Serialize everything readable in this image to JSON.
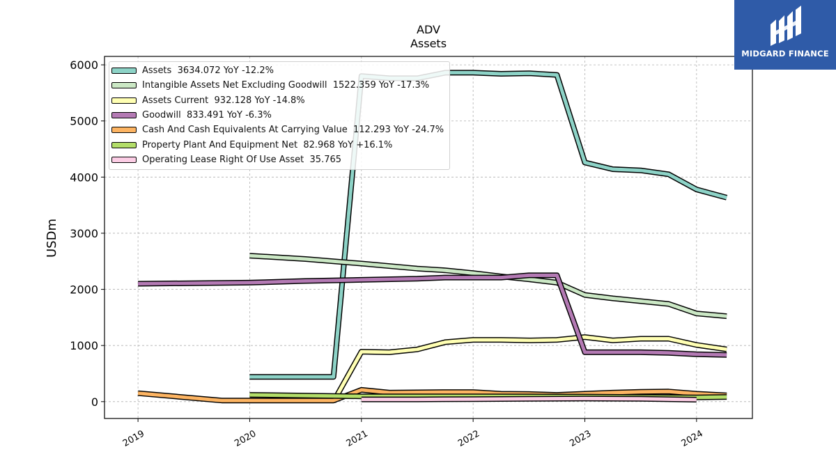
{
  "logo": {
    "name": "MIDGARD FINANCE",
    "bg": "#2f5ba8"
  },
  "chart_data": {
    "type": "line",
    "title": "ADV",
    "subtitle": "Assets",
    "ylabel": "USDm",
    "xlabel": "",
    "xlim": [
      2018.7,
      2024.5
    ],
    "ylim": [
      -300,
      6150
    ],
    "yticks": [
      0,
      1000,
      2000,
      3000,
      4000,
      5000,
      6000
    ],
    "xticks": [
      "2019",
      "2020",
      "2021",
      "2022",
      "2023",
      "2024"
    ],
    "grid": true,
    "legend_position": "top-left",
    "series": [
      {
        "name": "Assets",
        "legend": "Assets  3634.072 YoY -12.2%",
        "color": "#8dd3c7",
        "x": [
          2020.0,
          2020.75,
          2021.0,
          2021.25,
          2021.5,
          2021.75,
          2022.0,
          2022.25,
          2022.5,
          2022.75,
          2023.0,
          2023.25,
          2023.5,
          2023.75,
          2024.0,
          2024.27
        ],
        "y": [
          440,
          440,
          5800,
          5760,
          5760,
          5860,
          5860,
          5840,
          5850,
          5820,
          4260,
          4140,
          4120,
          4050,
          3780,
          3634
        ]
      },
      {
        "name": "Intangible Assets Net Excluding Goodwill",
        "legend": "Intangible Assets Net Excluding Goodwill  1522.359 YoY -17.3%",
        "color": "#cbe8c5",
        "x": [
          2020.0,
          2020.5,
          2021.0,
          2021.5,
          2021.75,
          2022.0,
          2022.25,
          2022.5,
          2022.75,
          2023.0,
          2023.25,
          2023.5,
          2023.75,
          2024.0,
          2024.27
        ],
        "y": [
          2600,
          2540,
          2460,
          2370,
          2340,
          2290,
          2230,
          2180,
          2120,
          1900,
          1840,
          1790,
          1740,
          1570,
          1522
        ]
      },
      {
        "name": "Assets Current",
        "legend": "Assets Current  932.128 YoY -14.8%",
        "color": "#ffffb3",
        "x": [
          2020.75,
          2021.0,
          2021.25,
          2021.5,
          2021.75,
          2022.0,
          2022.25,
          2022.5,
          2022.75,
          2023.0,
          2023.25,
          2023.5,
          2023.75,
          2024.0,
          2024.27
        ],
        "y": [
          0,
          890,
          880,
          930,
          1060,
          1100,
          1100,
          1090,
          1100,
          1150,
          1090,
          1120,
          1120,
          1010,
          932
        ]
      },
      {
        "name": "Goodwill",
        "legend": "Goodwill  833.491 YoY -6.3%",
        "color": "#b47ab4",
        "x": [
          2019.0,
          2020.0,
          2020.5,
          2021.0,
          2021.5,
          2021.75,
          2022.0,
          2022.25,
          2022.5,
          2022.75,
          2023.0,
          2023.25,
          2023.5,
          2023.75,
          2024.0,
          2024.27
        ],
        "y": [
          2100,
          2120,
          2150,
          2170,
          2190,
          2210,
          2210,
          2210,
          2250,
          2250,
          880,
          880,
          880,
          870,
          845,
          833
        ]
      },
      {
        "name": "Cash And Cash Equivalents At Carrying Value",
        "legend": "Cash And Cash Equivalents At Carrying Value  112.293 YoY -24.7%",
        "color": "#fdb462",
        "x": [
          2019.0,
          2019.75,
          2020.0,
          2020.75,
          2021.0,
          2021.25,
          2021.5,
          2021.75,
          2022.0,
          2022.25,
          2022.5,
          2022.75,
          2023.0,
          2023.25,
          2023.5,
          2023.75,
          2024.0,
          2024.27
        ],
        "y": [
          150,
          20,
          20,
          20,
          210,
          160,
          165,
          170,
          170,
          140,
          135,
          120,
          140,
          160,
          175,
          180,
          140,
          112
        ]
      },
      {
        "name": "Property Plant And Equipment Net",
        "legend": "Property Plant And Equipment Net  82.968 YoY +16.1%",
        "color": "#b3de69",
        "x": [
          2020.0,
          2021.0,
          2022.0,
          2023.0,
          2024.0,
          2024.27
        ],
        "y": [
          120,
          95,
          95,
          90,
          75,
          83
        ]
      },
      {
        "name": "Operating Lease Right Of Use Asset",
        "legend": "Operating Lease Right Of Use Asset  35.765",
        "color": "#fccde5",
        "x": [
          2021.0,
          2021.5,
          2022.0,
          2022.5,
          2023.0,
          2023.5,
          2024.0
        ],
        "y": [
          40,
          40,
          45,
          50,
          55,
          50,
          35
        ]
      }
    ]
  }
}
